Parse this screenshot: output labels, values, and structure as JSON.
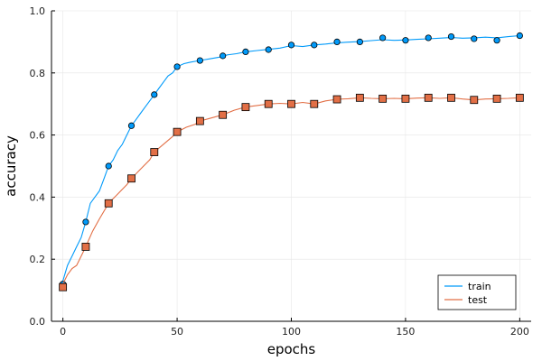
{
  "chart_data": {
    "type": "line",
    "title": "",
    "xlabel": "epochs",
    "ylabel": "accuracy",
    "xlim": [
      -5,
      205
    ],
    "ylim": [
      0,
      1
    ],
    "xticks": [
      0,
      50,
      100,
      150,
      200
    ],
    "yticks": [
      0.0,
      0.2,
      0.4,
      0.6,
      0.8,
      1.0
    ],
    "ytick_labels": [
      "0.0",
      "0.2",
      "0.4",
      "0.6",
      "0.8",
      "1.0"
    ],
    "grid": true,
    "legend_position": "bottom-right",
    "series": [
      {
        "name": "train",
        "color": "#009AFA",
        "marker": "circle",
        "marker_x": [
          0,
          10,
          20,
          30,
          40,
          50,
          60,
          70,
          80,
          90,
          100,
          110,
          120,
          130,
          140,
          150,
          160,
          170,
          180,
          190,
          200
        ],
        "marker_y": [
          0.12,
          0.32,
          0.5,
          0.63,
          0.73,
          0.82,
          0.84,
          0.855,
          0.868,
          0.875,
          0.89,
          0.89,
          0.9,
          0.9,
          0.913,
          0.905,
          0.913,
          0.917,
          0.91,
          0.905,
          0.92
        ],
        "line_x": [
          0,
          2,
          4,
          6,
          8,
          10,
          12,
          14,
          16,
          18,
          20,
          22,
          24,
          26,
          28,
          30,
          32,
          34,
          36,
          38,
          40,
          42,
          44,
          46,
          48,
          50,
          53,
          56,
          60,
          64,
          68,
          72,
          76,
          80,
          85,
          90,
          95,
          100,
          105,
          110,
          115,
          120,
          125,
          130,
          135,
          140,
          145,
          150,
          155,
          160,
          165,
          170,
          175,
          180,
          185,
          190,
          195,
          200
        ],
        "line_y": [
          0.13,
          0.18,
          0.21,
          0.24,
          0.27,
          0.32,
          0.38,
          0.4,
          0.42,
          0.46,
          0.5,
          0.52,
          0.55,
          0.57,
          0.6,
          0.63,
          0.65,
          0.67,
          0.69,
          0.71,
          0.73,
          0.75,
          0.77,
          0.79,
          0.8,
          0.82,
          0.83,
          0.835,
          0.84,
          0.845,
          0.85,
          0.858,
          0.862,
          0.868,
          0.872,
          0.876,
          0.88,
          0.888,
          0.885,
          0.89,
          0.893,
          0.897,
          0.899,
          0.901,
          0.904,
          0.907,
          0.905,
          0.906,
          0.908,
          0.91,
          0.912,
          0.914,
          0.912,
          0.913,
          0.915,
          0.913,
          0.917,
          0.92
        ]
      },
      {
        "name": "test",
        "color": "#E26F46",
        "marker": "square",
        "marker_x": [
          0,
          10,
          20,
          30,
          40,
          50,
          60,
          70,
          80,
          90,
          100,
          110,
          120,
          130,
          140,
          150,
          160,
          170,
          180,
          190,
          200
        ],
        "marker_y": [
          0.11,
          0.24,
          0.38,
          0.46,
          0.545,
          0.61,
          0.645,
          0.665,
          0.69,
          0.7,
          0.7,
          0.7,
          0.715,
          0.72,
          0.717,
          0.717,
          0.72,
          0.72,
          0.713,
          0.717,
          0.72
        ],
        "line_x": [
          0,
          2,
          4,
          6,
          8,
          10,
          13,
          16,
          20,
          24,
          28,
          30,
          34,
          38,
          40,
          44,
          48,
          50,
          54,
          58,
          60,
          65,
          70,
          75,
          80,
          85,
          90,
          95,
          100,
          105,
          110,
          115,
          120,
          125,
          130,
          135,
          140,
          145,
          150,
          155,
          160,
          165,
          170,
          175,
          180,
          185,
          190,
          195,
          200
        ],
        "line_y": [
          0.12,
          0.15,
          0.17,
          0.18,
          0.21,
          0.24,
          0.29,
          0.33,
          0.38,
          0.41,
          0.44,
          0.46,
          0.49,
          0.52,
          0.545,
          0.57,
          0.595,
          0.61,
          0.625,
          0.635,
          0.645,
          0.655,
          0.665,
          0.68,
          0.69,
          0.695,
          0.7,
          0.702,
          0.7,
          0.705,
          0.7,
          0.71,
          0.715,
          0.717,
          0.72,
          0.718,
          0.717,
          0.718,
          0.717,
          0.719,
          0.72,
          0.718,
          0.72,
          0.716,
          0.713,
          0.716,
          0.717,
          0.718,
          0.72
        ]
      }
    ]
  }
}
